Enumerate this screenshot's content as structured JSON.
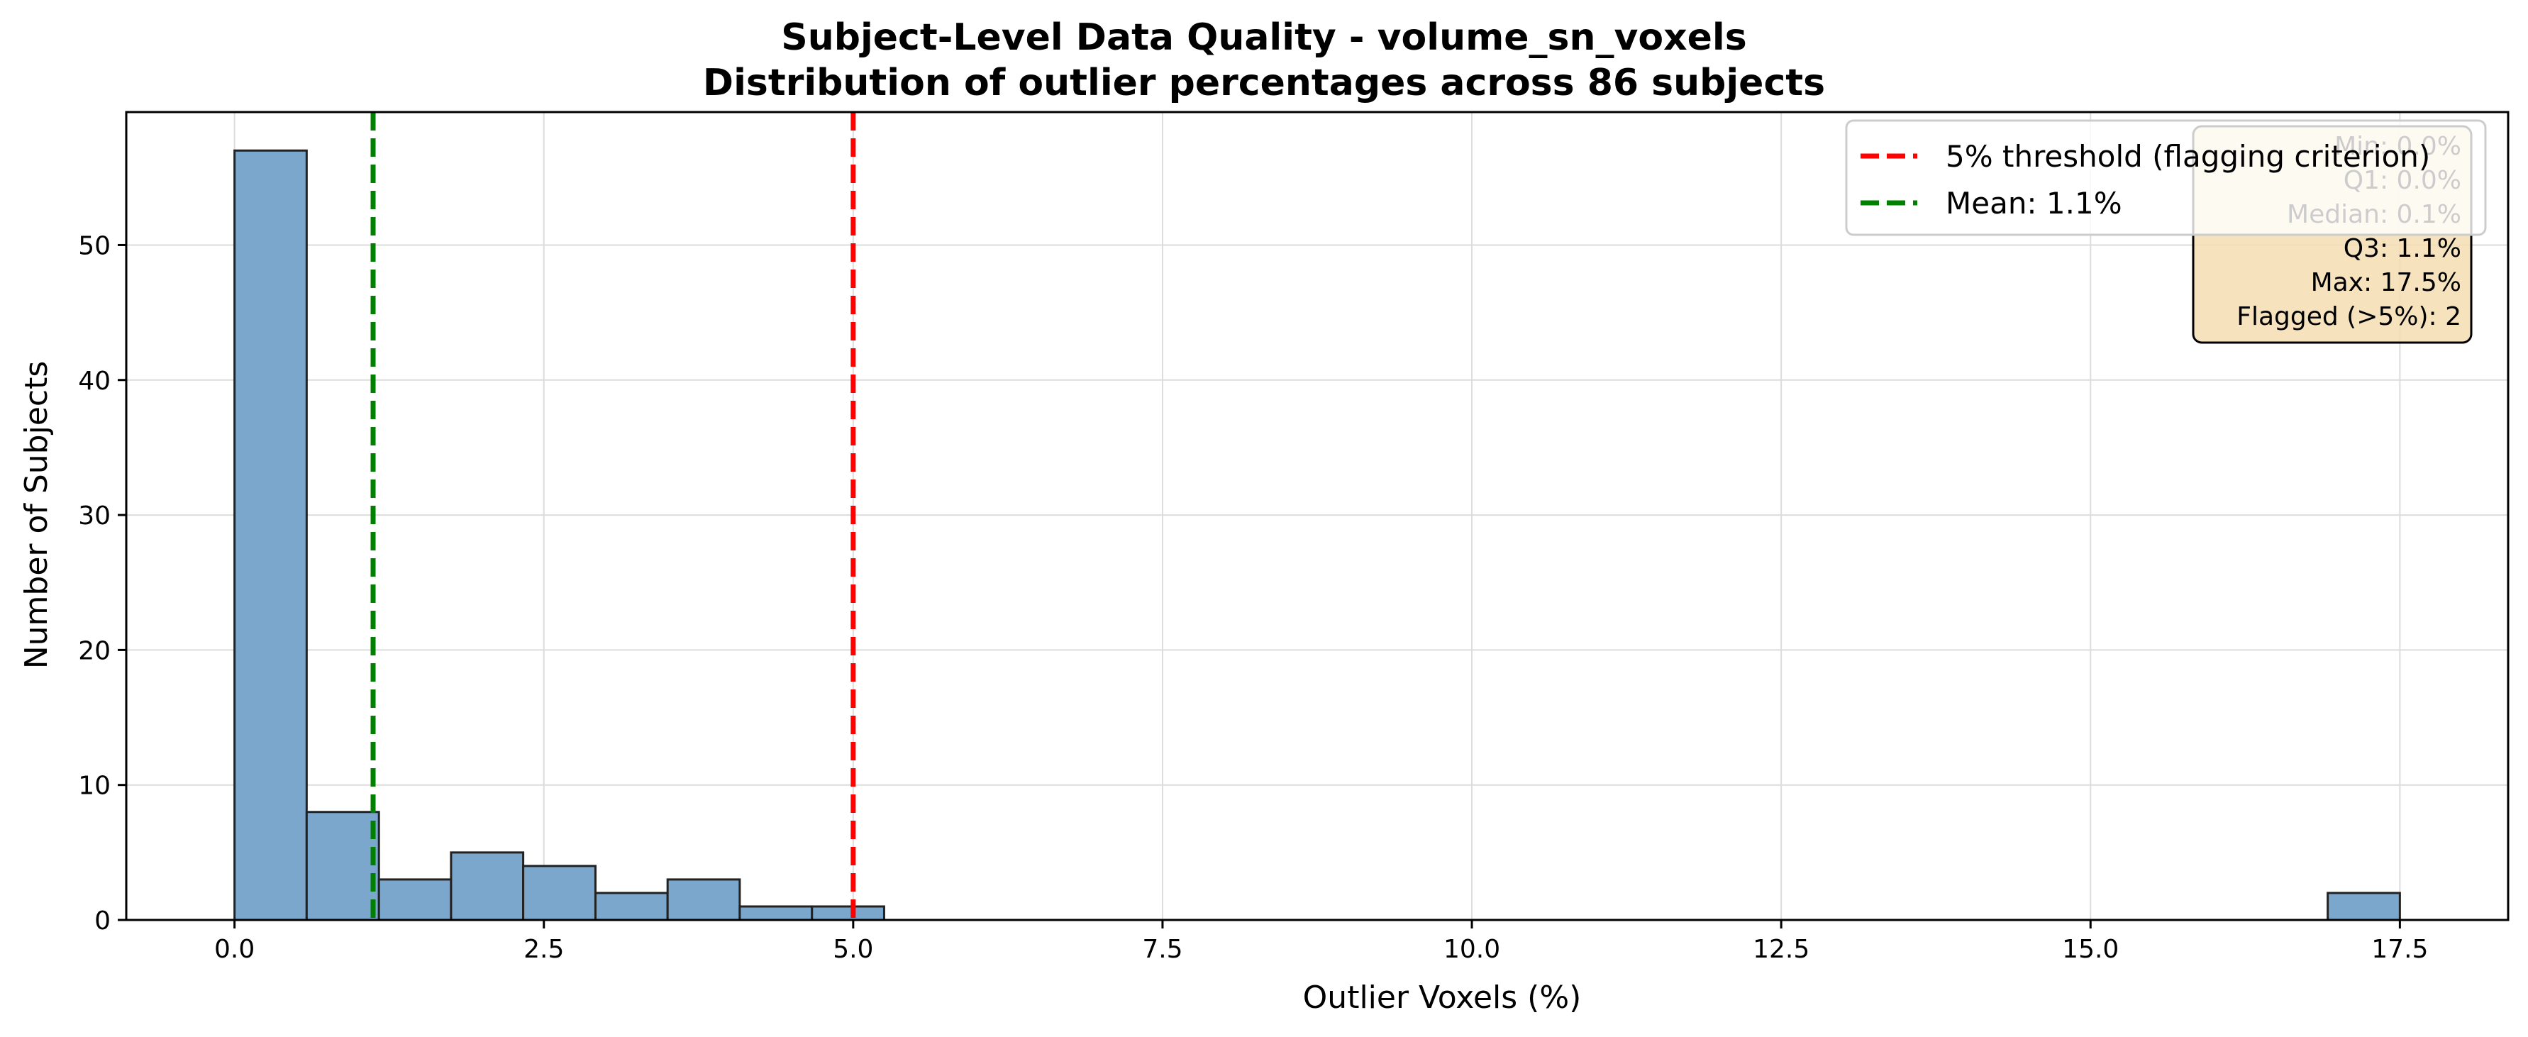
{
  "chart_data": {
    "type": "bar",
    "title": "Subject-Level Data Quality - volume_sn_voxels",
    "subtitle": "Distribution of outlier percentages across 86 subjects",
    "xlabel": "Outlier Voxels (%)",
    "ylabel": "Number of Subjects",
    "xlim": [
      -0.875,
      18.375
    ],
    "ylim": [
      0,
      59.85
    ],
    "x_ticks": [
      0.0,
      2.5,
      5.0,
      7.5,
      10.0,
      12.5,
      15.0,
      17.5
    ],
    "x_tick_labels": [
      "0.0",
      "2.5",
      "5.0",
      "7.5",
      "10.0",
      "12.5",
      "15.0",
      "17.5"
    ],
    "y_ticks": [
      0,
      10,
      20,
      30,
      40,
      50
    ],
    "y_tick_labels": [
      "0",
      "10",
      "20",
      "30",
      "40",
      "50"
    ],
    "grid": true,
    "bin_edges": [
      0.0,
      0.583,
      1.167,
      1.75,
      2.333,
      2.917,
      3.5,
      4.083,
      4.667,
      5.25,
      5.833,
      6.417,
      7.0,
      7.583,
      8.167,
      8.75,
      9.333,
      9.917,
      10.5,
      11.083,
      11.667,
      12.25,
      12.833,
      13.417,
      14.0,
      14.583,
      15.167,
      15.75,
      16.333,
      16.917,
      17.5
    ],
    "counts": [
      57,
      8,
      3,
      5,
      4,
      2,
      3,
      1,
      1,
      0,
      0,
      0,
      0,
      0,
      0,
      0,
      0,
      0,
      0,
      0,
      0,
      0,
      0,
      0,
      0,
      0,
      0,
      0,
      0,
      2
    ],
    "bar_color": "#7ba7cc",
    "bar_edge_color": "#222222",
    "reference_lines": [
      {
        "x": 5.0,
        "label": "5% threshold (flagging criterion)",
        "color": "#ff0000"
      },
      {
        "x": 1.12,
        "label": "Mean: 1.1%",
        "color": "#008000"
      }
    ],
    "legend_position": "upper right",
    "stats_box": {
      "lines": [
        "Min: 0.0%",
        "Q1: 0.0%",
        "Median: 0.1%",
        "Q3: 1.1%",
        "Max: 17.5%",
        "Flagged (>5%): 2"
      ],
      "background": "#f5deb3"
    }
  }
}
